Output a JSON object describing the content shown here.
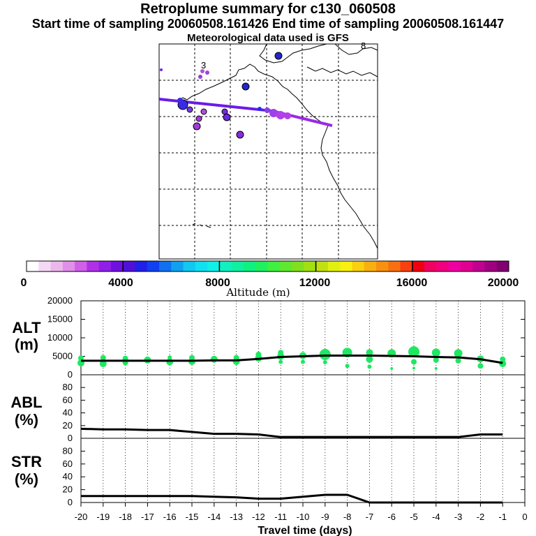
{
  "title": "Retroplume summary for c130_060508",
  "subtitle": "Start time of sampling 20060508.161426     End time of sampling 20060508.161447",
  "met_line": "Meteorological data used is GFS",
  "colorbar": {
    "label": "Altitude (m)",
    "tick_labels": [
      "0",
      "4000",
      "8000",
      "12000",
      "16000",
      "20000"
    ],
    "colors": [
      "#ffffff",
      "#f5d8f5",
      "#ecb8ec",
      "#e090e8",
      "#d060e8",
      "#b030e8",
      "#9020e8",
      "#7010e0",
      "#5010d8",
      "#2020e8",
      "#1040f0",
      "#1070f0",
      "#10a0f0",
      "#10c8f0",
      "#10e0f0",
      "#10f0e8",
      "#10f0c0",
      "#10f0a0",
      "#10f080",
      "#20f060",
      "#40f040",
      "#60e830",
      "#80e020",
      "#a0e010",
      "#c0e010",
      "#e0f010",
      "#f8f010",
      "#f8d010",
      "#f8b010",
      "#f89010",
      "#f87010",
      "#f84010",
      "#f00010",
      "#f00060",
      "#f00080",
      "#f000a0",
      "#e00090",
      "#c00090",
      "#a00080",
      "#800070"
    ]
  },
  "map_labels": {
    "lat_lon_labels": [
      "3",
      "8"
    ]
  },
  "chart_data": [
    {
      "type": "line",
      "panel_label": [
        "ALT",
        "(m)"
      ],
      "ylabel_unit": "m",
      "y_ticks": [
        "20000",
        "15000",
        "10000",
        "5000",
        "0"
      ],
      "ylim": [
        0,
        20000
      ],
      "x": [
        -20,
        -19,
        -18,
        -17,
        -16,
        -15,
        -14,
        -13,
        -12,
        -11,
        -10,
        -9,
        -8,
        -7,
        -6,
        -5,
        -4,
        -3,
        -2,
        -1
      ],
      "series": [
        {
          "name": "median altitude",
          "values": [
            3800,
            3800,
            3800,
            3800,
            3800,
            3800,
            3900,
            3900,
            4300,
            4800,
            5000,
            5200,
            5200,
            5200,
            5100,
            5000,
            4800,
            4700,
            4200,
            3200
          ]
        }
      ],
      "scatter_points": [
        {
          "x": -20,
          "y": 3200,
          "r": 5
        },
        {
          "x": -20,
          "y": 4500,
          "r": 4
        },
        {
          "x": -19,
          "y": 3000,
          "r": 5
        },
        {
          "x": -19,
          "y": 4600,
          "r": 4
        },
        {
          "x": -18,
          "y": 3300,
          "r": 4
        },
        {
          "x": -18,
          "y": 4400,
          "r": 4
        },
        {
          "x": -17,
          "y": 4000,
          "r": 5
        },
        {
          "x": -16,
          "y": 3500,
          "r": 5
        },
        {
          "x": -16,
          "y": 4700,
          "r": 3
        },
        {
          "x": -15,
          "y": 3600,
          "r": 5
        },
        {
          "x": -15,
          "y": 4600,
          "r": 4
        },
        {
          "x": -14,
          "y": 4200,
          "r": 5
        },
        {
          "x": -13,
          "y": 3600,
          "r": 5
        },
        {
          "x": -13,
          "y": 4600,
          "r": 4
        },
        {
          "x": -12,
          "y": 4500,
          "r": 5
        },
        {
          "x": -12,
          "y": 5500,
          "r": 4
        },
        {
          "x": -11,
          "y": 5000,
          "r": 5
        },
        {
          "x": -11,
          "y": 6000,
          "r": 4
        },
        {
          "x": -11,
          "y": 3500,
          "r": 3
        },
        {
          "x": -10,
          "y": 5200,
          "r": 5
        },
        {
          "x": -10,
          "y": 3500,
          "r": 3
        },
        {
          "x": -9,
          "y": 5500,
          "r": 8
        },
        {
          "x": -9,
          "y": 3400,
          "r": 3
        },
        {
          "x": -8,
          "y": 6000,
          "r": 7
        },
        {
          "x": -8,
          "y": 2400,
          "r": 3
        },
        {
          "x": -7,
          "y": 4200,
          "r": 5
        },
        {
          "x": -7,
          "y": 6000,
          "r": 5
        },
        {
          "x": -7,
          "y": 2200,
          "r": 3
        },
        {
          "x": -6,
          "y": 5800,
          "r": 6
        },
        {
          "x": -6,
          "y": 1700,
          "r": 2
        },
        {
          "x": -5,
          "y": 6200,
          "r": 8
        },
        {
          "x": -5,
          "y": 3500,
          "r": 4
        },
        {
          "x": -5,
          "y": 1800,
          "r": 2
        },
        {
          "x": -4,
          "y": 6000,
          "r": 6
        },
        {
          "x": -4,
          "y": 4000,
          "r": 4
        },
        {
          "x": -4,
          "y": 1700,
          "r": 2
        },
        {
          "x": -3,
          "y": 5800,
          "r": 6
        },
        {
          "x": -3,
          "y": 3800,
          "r": 4
        },
        {
          "x": -2,
          "y": 4300,
          "r": 5
        },
        {
          "x": -2,
          "y": 2400,
          "r": 4
        },
        {
          "x": -1,
          "y": 3000,
          "r": 5
        },
        {
          "x": -1,
          "y": 4200,
          "r": 4
        }
      ],
      "point_color": "#1ee862"
    },
    {
      "type": "line",
      "panel_label": [
        "ABL",
        "(%)"
      ],
      "y_ticks": [
        "80",
        "60",
        "40",
        "20",
        "0"
      ],
      "ylim": [
        0,
        100
      ],
      "x": [
        -20,
        -19,
        -18,
        -17,
        -16,
        -15,
        -14,
        -13,
        -12,
        -11,
        -10,
        -9,
        -8,
        -7,
        -6,
        -5,
        -4,
        -3,
        -2,
        -1
      ],
      "series": [
        {
          "name": "percent in boundary layer",
          "values": [
            15,
            14,
            14,
            13,
            13,
            10,
            7,
            7,
            6,
            2,
            2,
            2,
            2,
            2,
            2,
            2,
            2,
            2,
            6,
            6
          ]
        }
      ]
    },
    {
      "type": "line",
      "panel_label": [
        "STR",
        "(%)"
      ],
      "y_ticks": [
        "80",
        "60",
        "40",
        "20",
        "0"
      ],
      "ylim": [
        0,
        100
      ],
      "x": [
        -20,
        -19,
        -18,
        -17,
        -16,
        -15,
        -14,
        -13,
        -12,
        -11,
        -10,
        -9,
        -8,
        -7,
        -6,
        -5,
        -4,
        -3,
        -2,
        -1
      ],
      "series": [
        {
          "name": "percent in stratosphere",
          "values": [
            10,
            10,
            10,
            10,
            10,
            10,
            9,
            8,
            6,
            6,
            9,
            12,
            12,
            0,
            0,
            0,
            0,
            0,
            0,
            0
          ]
        }
      ]
    }
  ],
  "x_axis": {
    "tick_labels": [
      "-20",
      "-19",
      "-18",
      "-17",
      "-16",
      "-15",
      "-14",
      "-13",
      "-12",
      "-11",
      "-10",
      "-9",
      "-8",
      "-7",
      "-6",
      "-5",
      "-4",
      "-3",
      "-2",
      "-1",
      "0"
    ],
    "label": "Travel time (days)"
  }
}
